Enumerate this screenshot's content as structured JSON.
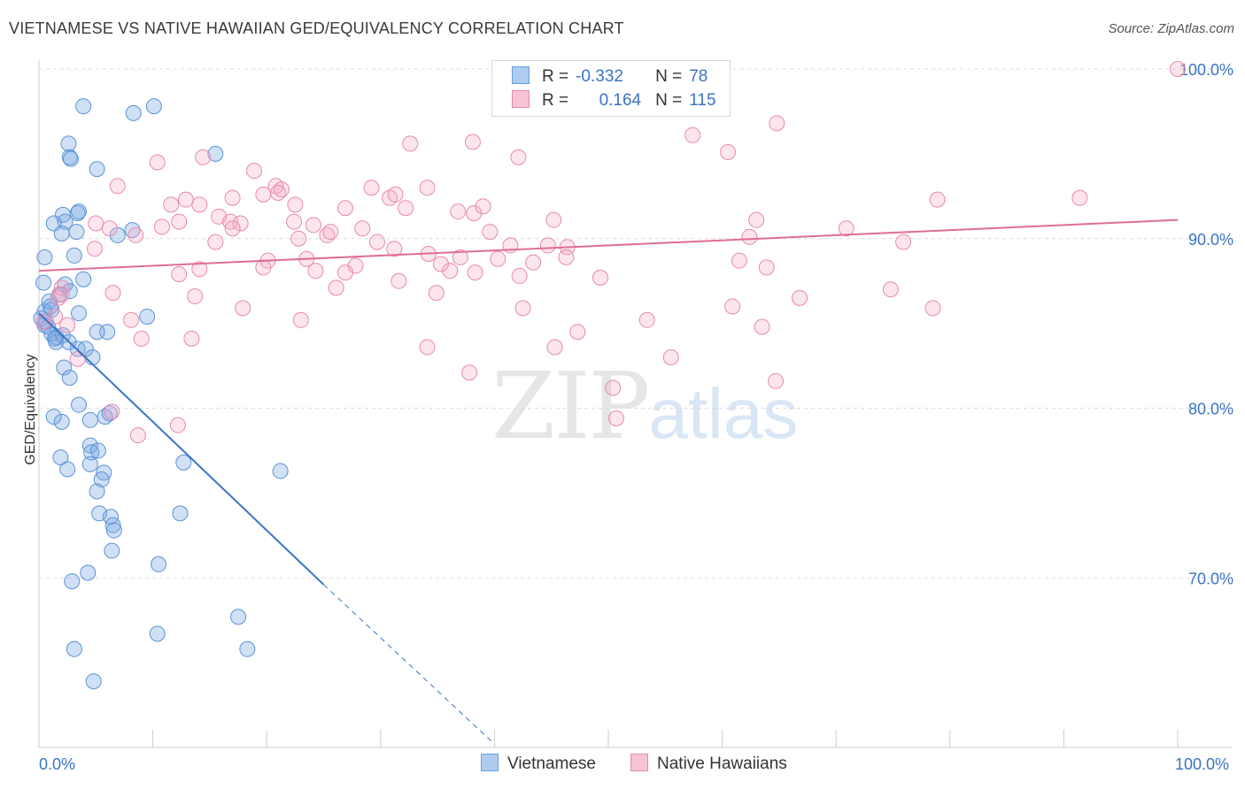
{
  "title": "VIETNAMESE VS NATIVE HAWAIIAN GED/EQUIVALENCY CORRELATION CHART",
  "source": "Source: ZipAtlas.com",
  "watermark": {
    "zip": "ZIP",
    "atlas": "atlas"
  },
  "legend": {
    "r_label": "R =",
    "n_label": "N =",
    "rows": [
      {
        "name": "Vietnamese",
        "r": "-0.332",
        "n": "78",
        "fill": "#aecbf0",
        "stroke": "#6a9fd8"
      },
      {
        "name": "Native Hawaiians",
        "r": "0.164",
        "n": "115",
        "fill": "#f8c4d4",
        "stroke": "#e58ba8"
      }
    ]
  },
  "colors": {
    "blue": "#3a74c4",
    "blue_fill": "rgba(120,165,225,0.35)",
    "blue_stroke": "#5d93d6",
    "pink": "#e06d96",
    "pink_fill": "rgba(245,170,195,0.30)",
    "pink_stroke": "#e88aab",
    "grid": "#dcdcdc",
    "axis_text": "#3a74c4"
  },
  "chart_data": {
    "type": "scatter",
    "title": "VIETNAMESE VS NATIVE HAWAIIAN GED/EQUIVALENCY CORRELATION CHART",
    "xlabel": "",
    "ylabel": "GED/Equivalency",
    "xlim": [
      0,
      100
    ],
    "ylim": [
      60,
      100
    ],
    "x_ticks": [
      "0.0%",
      "100.0%"
    ],
    "y_ticks": [
      {
        "value": 70,
        "label": "70.0%"
      },
      {
        "value": 80,
        "label": "80.0%"
      },
      {
        "value": 90,
        "label": "90.0%"
      },
      {
        "value": 100,
        "label": "100.0%"
      }
    ],
    "grid": "horizontal dashed",
    "legend_position": "top-center",
    "series": [
      {
        "name": "Vietnamese",
        "trend": {
          "x": [
            0,
            25
          ],
          "y": [
            85.6,
            69.6
          ],
          "dashed_to": [
            40,
            60.2
          ]
        },
        "points": [
          [
            3.9,
            97.8
          ],
          [
            8.3,
            97.4
          ],
          [
            10.1,
            97.8
          ],
          [
            2.6,
            95.6
          ],
          [
            2.7,
            94.8
          ],
          [
            2.8,
            94.7
          ],
          [
            5.1,
            94.1
          ],
          [
            15.5,
            95
          ],
          [
            0.5,
            88.9
          ],
          [
            2.1,
            91.4
          ],
          [
            2.3,
            91
          ],
          [
            1.3,
            90.9
          ],
          [
            2.0,
            90.3
          ],
          [
            3.4,
            91.5
          ],
          [
            3.5,
            91.6
          ],
          [
            3.3,
            90.4
          ],
          [
            8.2,
            90.5
          ],
          [
            6.9,
            90.2
          ],
          [
            3.1,
            89
          ],
          [
            0.4,
            87.4
          ],
          [
            2.3,
            87.3
          ],
          [
            2.7,
            86.9
          ],
          [
            3.9,
            87.6
          ],
          [
            1.8,
            86.7
          ],
          [
            0.5,
            85.7
          ],
          [
            0.9,
            86.3
          ],
          [
            1.1,
            85.8
          ],
          [
            0.5,
            84.9
          ],
          [
            3.5,
            85.6
          ],
          [
            9.5,
            85.4
          ],
          [
            1.1,
            84.4
          ],
          [
            1.5,
            84.2
          ],
          [
            1.4,
            84.1
          ],
          [
            1.5,
            83.9
          ],
          [
            3.4,
            83.5
          ],
          [
            4.1,
            83.5
          ],
          [
            6.0,
            84.5
          ],
          [
            5.1,
            84.5
          ],
          [
            4.7,
            83
          ],
          [
            2.2,
            82.4
          ],
          [
            2.7,
            81.8
          ],
          [
            1.3,
            79.5
          ],
          [
            2.0,
            79.2
          ],
          [
            3.5,
            80.2
          ],
          [
            5.8,
            79.5
          ],
          [
            6.2,
            79.7
          ],
          [
            4.5,
            79.3
          ],
          [
            1.9,
            77.1
          ],
          [
            2.5,
            76.4
          ],
          [
            4.5,
            77.8
          ],
          [
            4.6,
            77.4
          ],
          [
            5.2,
            77.5
          ],
          [
            4.5,
            76.7
          ],
          [
            5.7,
            76.2
          ],
          [
            5.5,
            75.8
          ],
          [
            12.7,
            76.8
          ],
          [
            21.2,
            76.3
          ],
          [
            5.1,
            75.1
          ],
          [
            5.3,
            73.8
          ],
          [
            6.3,
            73.6
          ],
          [
            6.5,
            73.1
          ],
          [
            6.6,
            72.8
          ],
          [
            12.4,
            73.8
          ],
          [
            6.4,
            71.6
          ],
          [
            10.5,
            70.8
          ],
          [
            4.3,
            70.3
          ],
          [
            2.9,
            69.8
          ],
          [
            17.5,
            67.7
          ],
          [
            10.4,
            66.7
          ],
          [
            3.1,
            65.8
          ],
          [
            18.3,
            65.8
          ],
          [
            4.8,
            63.9
          ],
          [
            0.2,
            85.3
          ],
          [
            0.6,
            85.1
          ],
          [
            2.1,
            84.3
          ],
          [
            1.0,
            86.0
          ],
          [
            2.6,
            83.9
          ],
          [
            0.8,
            84.8
          ]
        ]
      },
      {
        "name": "Native Hawaiians",
        "trend": {
          "x": [
            0,
            100
          ],
          "y": [
            88.1,
            91.1
          ]
        },
        "points": [
          [
            59.2,
            100
          ],
          [
            100,
            100
          ],
          [
            64.8,
            96.8
          ],
          [
            57.4,
            96.1
          ],
          [
            32.6,
            95.6
          ],
          [
            38.1,
            95.7
          ],
          [
            60.5,
            95.1
          ],
          [
            10.4,
            94.5
          ],
          [
            14.4,
            94.8
          ],
          [
            18.9,
            94
          ],
          [
            42.1,
            94.8
          ],
          [
            6.9,
            93.1
          ],
          [
            19.7,
            92.6
          ],
          [
            20.8,
            93.1
          ],
          [
            21.3,
            92.9
          ],
          [
            21.0,
            92.7
          ],
          [
            29.2,
            93
          ],
          [
            34.1,
            93
          ],
          [
            12.9,
            92.3
          ],
          [
            11.6,
            92
          ],
          [
            14.1,
            92
          ],
          [
            17.0,
            92.4
          ],
          [
            22.5,
            92
          ],
          [
            26.9,
            91.8
          ],
          [
            30.8,
            92.4
          ],
          [
            31.3,
            92.6
          ],
          [
            32.2,
            91.8
          ],
          [
            36.8,
            91.6
          ],
          [
            38.2,
            91.5
          ],
          [
            39.0,
            91.9
          ],
          [
            91.4,
            92.4
          ],
          [
            78.9,
            92.3
          ],
          [
            15.8,
            91.3
          ],
          [
            16.8,
            91
          ],
          [
            17.7,
            90.9
          ],
          [
            12.3,
            91
          ],
          [
            10.8,
            90.7
          ],
          [
            5.0,
            90.9
          ],
          [
            6.2,
            90.6
          ],
          [
            17.0,
            90.6
          ],
          [
            22.4,
            91
          ],
          [
            24.1,
            90.8
          ],
          [
            25.3,
            90.2
          ],
          [
            25.6,
            90.4
          ],
          [
            28.4,
            90.6
          ],
          [
            39.6,
            90.4
          ],
          [
            45.2,
            91.1
          ],
          [
            63.0,
            91.1
          ],
          [
            70.9,
            90.6
          ],
          [
            62.4,
            90.1
          ],
          [
            75.9,
            89.8
          ],
          [
            8.5,
            90.2
          ],
          [
            15.5,
            89.8
          ],
          [
            22.8,
            90
          ],
          [
            29.7,
            89.8
          ],
          [
            31.2,
            89.4
          ],
          [
            41.4,
            89.6
          ],
          [
            44.7,
            89.6
          ],
          [
            34.2,
            89.1
          ],
          [
            46.4,
            89.5
          ],
          [
            4.9,
            89.4
          ],
          [
            20.1,
            88.7
          ],
          [
            23.5,
            88.8
          ],
          [
            27.8,
            88.4
          ],
          [
            35.3,
            88.5
          ],
          [
            37.0,
            88.9
          ],
          [
            40.3,
            88.8
          ],
          [
            43.4,
            88.6
          ],
          [
            61.5,
            88.7
          ],
          [
            46.3,
            88.9
          ],
          [
            19.7,
            88.3
          ],
          [
            12.3,
            87.9
          ],
          [
            14.1,
            88.2
          ],
          [
            24.3,
            88.1
          ],
          [
            26.9,
            88
          ],
          [
            36.1,
            88.1
          ],
          [
            38.3,
            88
          ],
          [
            42.2,
            87.8
          ],
          [
            63.9,
            88.3
          ],
          [
            31.6,
            87.5
          ],
          [
            49.3,
            87.7
          ],
          [
            26.1,
            87.1
          ],
          [
            74.8,
            87
          ],
          [
            2.0,
            87.1
          ],
          [
            6.5,
            86.8
          ],
          [
            13.7,
            86.6
          ],
          [
            34.9,
            86.8
          ],
          [
            66.8,
            86.5
          ],
          [
            1.7,
            86.5
          ],
          [
            17.9,
            85.9
          ],
          [
            42.5,
            85.9
          ],
          [
            60.9,
            86
          ],
          [
            78.5,
            85.9
          ],
          [
            1.4,
            85.4
          ],
          [
            8.1,
            85.2
          ],
          [
            23.0,
            85.2
          ],
          [
            53.4,
            85.2
          ],
          [
            63.5,
            84.8
          ],
          [
            2.5,
            84.9
          ],
          [
            9.0,
            84.1
          ],
          [
            13.4,
            84.1
          ],
          [
            47.3,
            84.5
          ],
          [
            34.1,
            83.6
          ],
          [
            45.3,
            83.6
          ],
          [
            55.5,
            83
          ],
          [
            3.4,
            82.9
          ],
          [
            37.8,
            82.1
          ],
          [
            64.7,
            81.6
          ],
          [
            50.4,
            81.2
          ],
          [
            6.4,
            79.8
          ],
          [
            12.2,
            79
          ],
          [
            50.7,
            79.4
          ],
          [
            8.7,
            78.4
          ],
          [
            0.4,
            85.1
          ],
          [
            2.0,
            86.7
          ]
        ]
      }
    ]
  },
  "axis": {
    "x_left": "0.0%",
    "x_right": "100.0%",
    "y_label": "GED/Equivalency"
  }
}
